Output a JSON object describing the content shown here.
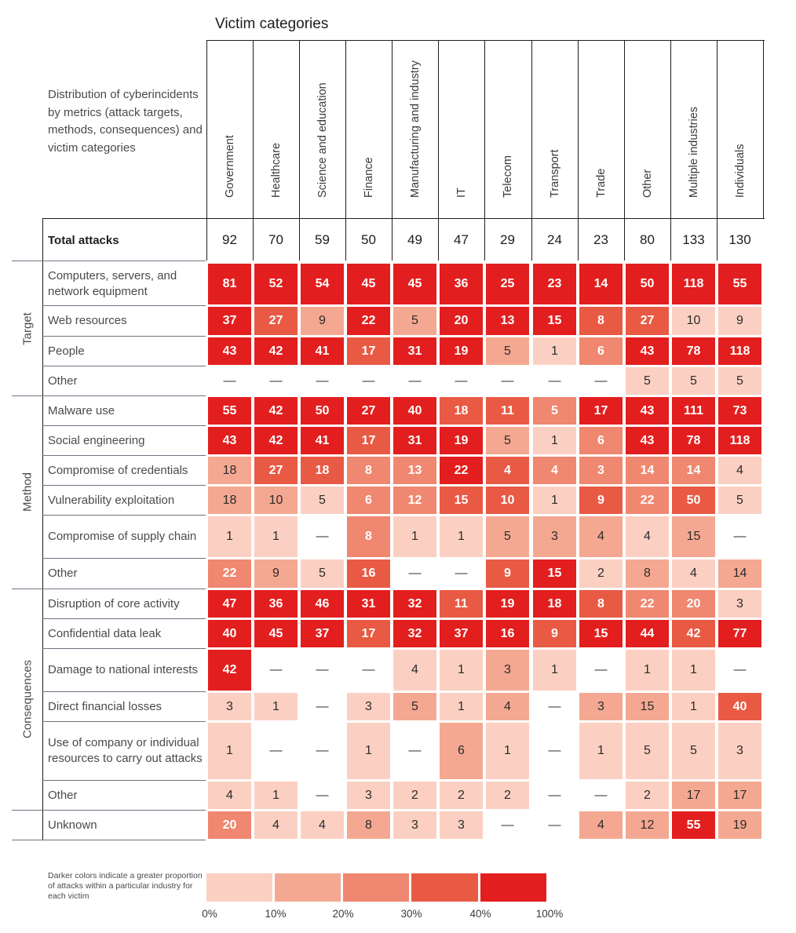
{
  "title": "Victim categories",
  "description": "Distribution of cyberincidents by metrics (attack targets, methods, consequences) and victim categories",
  "colors": {
    "l1": "#fbd0c2",
    "l2": "#f5a891",
    "l3": "#f08770",
    "l4": "#e95a44",
    "l5": "#e31e1e"
  },
  "chart_data": {
    "type": "heatmap",
    "title": "Victim categories",
    "columns": [
      "Government",
      "Healthcare",
      "Science and education",
      "Finance",
      "Manufacturing and industry",
      "IT",
      "Telecom",
      "Transport",
      "Trade",
      "Other",
      "Multiple industries",
      "Individuals"
    ],
    "total_label": "Total attacks",
    "totals": [
      "92",
      "70",
      "59",
      "50",
      "49",
      "47",
      "29",
      "24",
      "23",
      "80",
      "133",
      "130"
    ],
    "groups": [
      {
        "name": "Target",
        "rows": [
          {
            "label": "Computers, servers, and network equipment",
            "values": [
              "81",
              "52",
              "54",
              "45",
              "45",
              "36",
              "25",
              "23",
              "14",
              "50",
              "118",
              "55"
            ],
            "levels": [
              5,
              5,
              5,
              5,
              5,
              5,
              5,
              5,
              5,
              5,
              5,
              5
            ]
          },
          {
            "label": "Web resources",
            "values": [
              "37",
              "27",
              "9",
              "22",
              "5",
              "20",
              "13",
              "15",
              "8",
              "27",
              "10",
              "9"
            ],
            "levels": [
              5,
              4,
              2,
              5,
              2,
              5,
              5,
              5,
              4,
              4,
              1,
              1
            ]
          },
          {
            "label": "People",
            "values": [
              "43",
              "42",
              "41",
              "17",
              "31",
              "19",
              "5",
              "1",
              "6",
              "43",
              "78",
              "118"
            ],
            "levels": [
              5,
              5,
              5,
              4,
              5,
              5,
              2,
              1,
              3,
              5,
              5,
              5
            ]
          },
          {
            "label": "Other",
            "values": [
              "—",
              "—",
              "—",
              "—",
              "—",
              "—",
              "—",
              "—",
              "—",
              "5",
              "5",
              "5"
            ],
            "levels": [
              0,
              0,
              0,
              0,
              0,
              0,
              0,
              0,
              0,
              1,
              1,
              1
            ]
          }
        ]
      },
      {
        "name": "Method",
        "rows": [
          {
            "label": "Malware use",
            "values": [
              "55",
              "42",
              "50",
              "27",
              "40",
              "18",
              "11",
              "5",
              "17",
              "43",
              "111",
              "73"
            ],
            "levels": [
              5,
              5,
              5,
              5,
              5,
              4,
              4,
              3,
              5,
              5,
              5,
              5
            ]
          },
          {
            "label": "Social engineering",
            "values": [
              "43",
              "42",
              "41",
              "17",
              "31",
              "19",
              "5",
              "1",
              "6",
              "43",
              "78",
              "118"
            ],
            "levels": [
              5,
              5,
              5,
              4,
              5,
              5,
              2,
              1,
              3,
              5,
              5,
              5
            ]
          },
          {
            "label": "Compromise of credentials",
            "values": [
              "18",
              "27",
              "18",
              "8",
              "13",
              "22",
              "4",
              "4",
              "3",
              "14",
              "14",
              "4"
            ],
            "levels": [
              2,
              4,
              4,
              3,
              3,
              5,
              4,
              3,
              3,
              3,
              3,
              1
            ]
          },
          {
            "label": "Vulnerability exploitation",
            "values": [
              "18",
              "10",
              "5",
              "6",
              "12",
              "15",
              "10",
              "1",
              "9",
              "22",
              "50",
              "5"
            ],
            "levels": [
              2,
              2,
              1,
              3,
              3,
              4,
              4,
              1,
              4,
              3,
              4,
              1
            ]
          },
          {
            "label": "Compromise of supply chain",
            "values": [
              "1",
              "1",
              "—",
              "8",
              "1",
              "1",
              "5",
              "3",
              "4",
              "4",
              "15",
              "—"
            ],
            "levels": [
              1,
              1,
              0,
              3,
              1,
              1,
              2,
              2,
              2,
              1,
              2,
              0
            ]
          },
          {
            "label": "Other",
            "values": [
              "22",
              "9",
              "5",
              "16",
              "—",
              "—",
              "9",
              "15",
              "2",
              "8",
              "4",
              "14"
            ],
            "levels": [
              3,
              2,
              1,
              4,
              0,
              0,
              4,
              5,
              1,
              2,
              1,
              2
            ]
          }
        ]
      },
      {
        "name": "Consequences",
        "rows": [
          {
            "label": "Disruption of core activity",
            "values": [
              "47",
              "36",
              "46",
              "31",
              "32",
              "11",
              "19",
              "18",
              "8",
              "22",
              "20",
              "3"
            ],
            "levels": [
              5,
              5,
              5,
              5,
              5,
              4,
              5,
              5,
              4,
              3,
              3,
              1
            ]
          },
          {
            "label": "Confidential data leak",
            "values": [
              "40",
              "45",
              "37",
              "17",
              "32",
              "37",
              "16",
              "9",
              "15",
              "44",
              "42",
              "77"
            ],
            "levels": [
              5,
              5,
              5,
              4,
              5,
              5,
              5,
              4,
              5,
              5,
              4,
              5
            ]
          },
          {
            "label": "Damage to national interests",
            "values": [
              "42",
              "—",
              "—",
              "—",
              "4",
              "1",
              "3",
              "1",
              "—",
              "1",
              "1",
              "—"
            ],
            "levels": [
              5,
              0,
              0,
              0,
              1,
              1,
              2,
              1,
              0,
              1,
              1,
              0
            ]
          },
          {
            "label": "Direct financial losses",
            "values": [
              "3",
              "1",
              "—",
              "3",
              "5",
              "1",
              "4",
              "—",
              "3",
              "15",
              "1",
              "40"
            ],
            "levels": [
              1,
              1,
              0,
              1,
              2,
              1,
              2,
              0,
              2,
              2,
              1,
              4
            ]
          },
          {
            "label": "Use of company or individual resources to carry out attacks",
            "values": [
              "1",
              "—",
              "—",
              "1",
              "—",
              "6",
              "1",
              "—",
              "1",
              "5",
              "5",
              "3"
            ],
            "levels": [
              1,
              0,
              0,
              1,
              0,
              2,
              1,
              0,
              1,
              1,
              1,
              1
            ]
          },
          {
            "label": "Other",
            "values": [
              "4",
              "1",
              "—",
              "3",
              "2",
              "2",
              "2",
              "—",
              "—",
              "2",
              "17",
              "17"
            ],
            "levels": [
              1,
              1,
              0,
              1,
              1,
              1,
              1,
              0,
              0,
              1,
              2,
              2
            ]
          }
        ]
      },
      {
        "name": "",
        "rows": [
          {
            "label": "Unknown",
            "values": [
              "20",
              "4",
              "4",
              "8",
              "3",
              "3",
              "—",
              "—",
              "4",
              "12",
              "55",
              "19"
            ],
            "levels": [
              3,
              1,
              1,
              2,
              1,
              1,
              0,
              0,
              2,
              2,
              5,
              2
            ]
          }
        ]
      }
    ],
    "legend": {
      "text": "Darker colors indicate a greater proportion of attacks within a particular industry for each victim",
      "ticks": [
        "0%",
        "10%",
        "20%",
        "30%",
        "40%",
        "100%"
      ]
    }
  }
}
